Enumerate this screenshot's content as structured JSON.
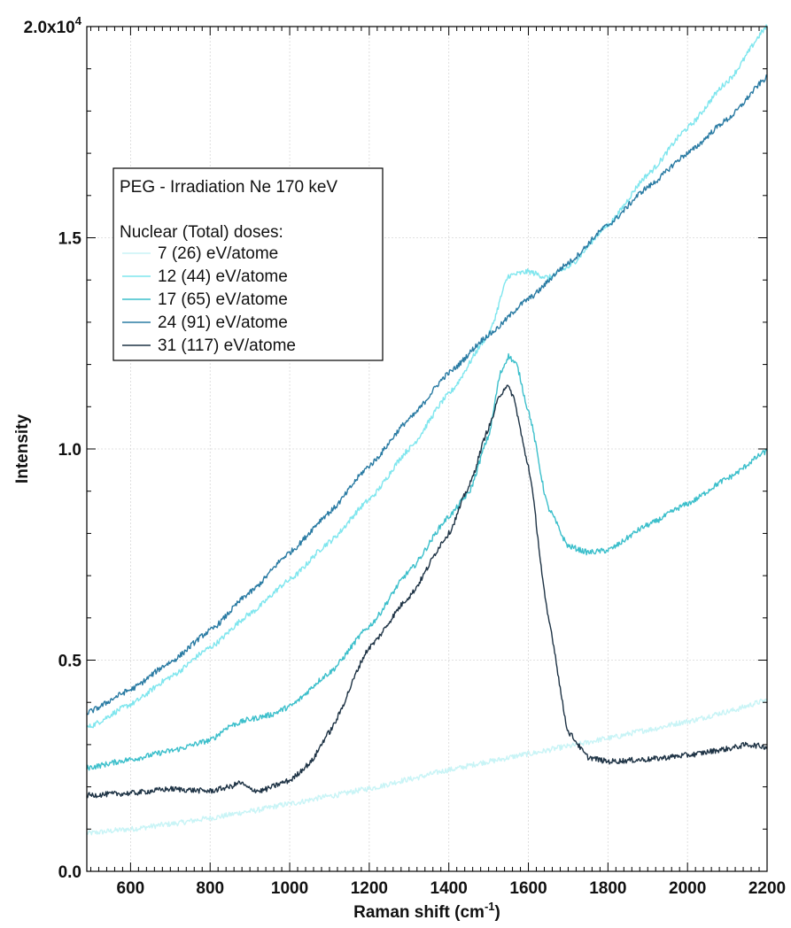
{
  "chart_data": {
    "type": "line",
    "title": "",
    "xlabel": "Raman shift (cm",
    "xlabel_sup": "-1",
    "xlabel_suffix": ")",
    "ylabel": "Intensity",
    "xlim": [
      490,
      2200
    ],
    "ylim": [
      0,
      20000
    ],
    "x_ticks": [
      600,
      800,
      1000,
      1200,
      1400,
      1600,
      1800,
      2000,
      2200
    ],
    "y_ticks": [
      {
        "value": 0,
        "label": "0.0",
        "sup": ""
      },
      {
        "value": 5000,
        "label": "0.5",
        "sup": ""
      },
      {
        "value": 10000,
        "label": "1.0",
        "sup": ""
      },
      {
        "value": 15000,
        "label": "1.5",
        "sup": ""
      },
      {
        "value": 20000,
        "label": "2.0x10",
        "sup": "4"
      }
    ],
    "grid": true,
    "legend": {
      "position": "top-left",
      "title": "PEG - Irradiation Ne 170 keV",
      "subtitle": "Nuclear (Total) doses:"
    },
    "series": [
      {
        "name": "7 (26) eV/atome",
        "color": "#c8f4f6",
        "x": [
          490,
          600,
          700,
          800,
          900,
          1000,
          1100,
          1200,
          1300,
          1400,
          1500,
          1600,
          1700,
          1800,
          1900,
          2000,
          2100,
          2200
        ],
        "y": [
          900,
          1000,
          1120,
          1260,
          1420,
          1600,
          1780,
          1960,
          2180,
          2400,
          2600,
          2780,
          2960,
          3150,
          3350,
          3550,
          3780,
          4050
        ]
      },
      {
        "name": "12 (44) eV/atome",
        "color": "#7fe6ee",
        "x": [
          490,
          600,
          700,
          800,
          900,
          1000,
          1100,
          1200,
          1300,
          1400,
          1500,
          1550,
          1600,
          1650,
          1700,
          1800,
          1900,
          2000,
          2100,
          2200
        ],
        "y": [
          3400,
          3950,
          4600,
          5300,
          6100,
          6900,
          7800,
          8800,
          10000,
          11300,
          12700,
          14100,
          14200,
          14050,
          14300,
          15300,
          16500,
          17600,
          18700,
          20000
        ]
      },
      {
        "name": "17 (65) eV/atome",
        "color": "#3cbfcb",
        "x": [
          490,
          600,
          700,
          800,
          850,
          900,
          950,
          1000,
          1100,
          1200,
          1300,
          1400,
          1450,
          1500,
          1530,
          1550,
          1570,
          1600,
          1650,
          1700,
          1750,
          1800,
          1900,
          2000,
          2100,
          2200
        ],
        "y": [
          2450,
          2650,
          2850,
          3100,
          3450,
          3600,
          3700,
          3900,
          4700,
          5800,
          7100,
          8400,
          8950,
          10300,
          11800,
          12200,
          12000,
          10900,
          8600,
          7700,
          7550,
          7600,
          8200,
          8700,
          9300,
          9950
        ]
      },
      {
        "name": "24 (91) eV/atome",
        "color": "#2a7ba3",
        "x": [
          490,
          600,
          700,
          800,
          900,
          1000,
          1100,
          1200,
          1300,
          1400,
          1500,
          1600,
          1700,
          1800,
          1900,
          2000,
          2100,
          2200
        ],
        "y": [
          3750,
          4300,
          4950,
          5700,
          6600,
          7550,
          8500,
          9600,
          10700,
          11800,
          12700,
          13550,
          14400,
          15300,
          16200,
          17000,
          17800,
          18800
        ]
      },
      {
        "name": "31 (117) eV/atome",
        "color": "#1e3345",
        "x": [
          490,
          600,
          700,
          800,
          850,
          875,
          900,
          925,
          1000,
          1050,
          1100,
          1200,
          1300,
          1400,
          1450,
          1500,
          1530,
          1545,
          1560,
          1600,
          1650,
          1700,
          1750,
          1800,
          1900,
          2000,
          2100,
          2150,
          2200
        ],
        "y": [
          1800,
          1850,
          1950,
          1900,
          2000,
          2100,
          1950,
          1900,
          2150,
          2550,
          3300,
          5300,
          6500,
          8000,
          9100,
          10500,
          11300,
          11500,
          11300,
          9600,
          6000,
          3300,
          2700,
          2600,
          2650,
          2750,
          2900,
          3000,
          2950
        ]
      }
    ]
  }
}
